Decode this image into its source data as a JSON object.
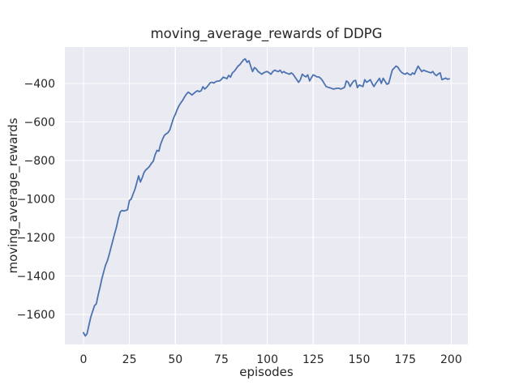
{
  "figure": {
    "background": "#ffffff"
  },
  "chart_data": {
    "type": "line",
    "title": "moving_average_rewards of DDPG",
    "xlabel": "episodes",
    "ylabel": "moving_average_rewards",
    "x_ticks": [
      0,
      25,
      50,
      75,
      100,
      125,
      150,
      175,
      200
    ],
    "x_tick_labels": [
      "0",
      "25",
      "50",
      "75",
      "100",
      "125",
      "150",
      "175",
      "200"
    ],
    "y_ticks": [
      -400,
      -600,
      -800,
      -1000,
      -1200,
      -1400,
      -1600
    ],
    "y_tick_labels": [
      "−400",
      "−600",
      "−800",
      "−1000",
      "−1200",
      "−1400",
      "−1600"
    ],
    "xlim": [
      -10.1,
      209.1
    ],
    "ylim": [
      -1756,
      -210.5
    ],
    "grid": true,
    "legend": "none",
    "style": {
      "axes_background": "#eaeaf2",
      "grid_color": "#ffffff",
      "line_color": "#4c72b0",
      "text_color": "#262626",
      "line_width": 1.8
    },
    "series": [
      {
        "name": "DDPG moving average reward",
        "color": "#4c72b0",
        "x_start": 0,
        "x_step": 1,
        "values": [
          -1695,
          -1712,
          -1700,
          -1655,
          -1613,
          -1585,
          -1555,
          -1545,
          -1500,
          -1460,
          -1415,
          -1380,
          -1345,
          -1322,
          -1290,
          -1252,
          -1215,
          -1180,
          -1145,
          -1100,
          -1068,
          -1060,
          -1063,
          -1060,
          -1056,
          -1008,
          -1000,
          -975,
          -950,
          -915,
          -880,
          -912,
          -888,
          -862,
          -848,
          -840,
          -830,
          -815,
          -803,
          -770,
          -748,
          -752,
          -715,
          -690,
          -670,
          -662,
          -655,
          -640,
          -610,
          -580,
          -560,
          -535,
          -515,
          -500,
          -487,
          -470,
          -455,
          -445,
          -452,
          -460,
          -452,
          -444,
          -438,
          -442,
          -438,
          -417,
          -429,
          -420,
          -408,
          -396,
          -394,
          -398,
          -390,
          -388,
          -387,
          -379,
          -367,
          -371,
          -375,
          -358,
          -367,
          -345,
          -337,
          -324,
          -310,
          -303,
          -290,
          -278,
          -272,
          -290,
          -282,
          -311,
          -338,
          -317,
          -324,
          -338,
          -345,
          -352,
          -345,
          -340,
          -338,
          -345,
          -352,
          -338,
          -331,
          -335,
          -338,
          -331,
          -345,
          -338,
          -345,
          -348,
          -352,
          -345,
          -352,
          -366,
          -380,
          -394,
          -380,
          -352,
          -360,
          -366,
          -355,
          -387,
          -370,
          -355,
          -360,
          -366,
          -366,
          -373,
          -385,
          -401,
          -416,
          -420,
          -422,
          -426,
          -429,
          -427,
          -425,
          -425,
          -429,
          -425,
          -420,
          -387,
          -394,
          -416,
          -400,
          -387,
          -384,
          -422,
          -408,
          -412,
          -416,
          -380,
          -394,
          -388,
          -380,
          -400,
          -416,
          -400,
          -387,
          -373,
          -399,
          -373,
          -388,
          -404,
          -400,
          -365,
          -330,
          -320,
          -310,
          -315,
          -331,
          -342,
          -348,
          -352,
          -345,
          -352,
          -356,
          -345,
          -352,
          -330,
          -310,
          -324,
          -338,
          -331,
          -335,
          -338,
          -342,
          -345,
          -338,
          -352,
          -359,
          -350,
          -345,
          -380,
          -376,
          -372,
          -378,
          -376
        ]
      }
    ]
  }
}
